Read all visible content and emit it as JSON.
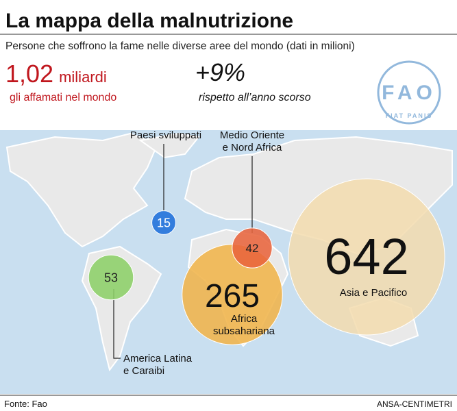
{
  "header": {
    "title": "La mappa della malnutrizione",
    "subtitle": "Persone che soffrono la fame nelle diverse aree del mondo (dati in milioni)"
  },
  "stats": [
    {
      "number": "1,02",
      "unit": "miliardi",
      "caption": "gli affamati nel mondo"
    },
    {
      "number": "+9%",
      "caption": "rispetto all’anno scorso"
    }
  ],
  "logo": {
    "letters": "FAO",
    "motto": "FIAT PANIS"
  },
  "regions": [
    {
      "label": [
        "Paesi sviluppati"
      ],
      "value": 15,
      "color": "#1e6fd9"
    },
    {
      "label": [
        "Medio Oriente",
        "e Nord Africa"
      ],
      "value": 42,
      "color": "#e8643c"
    },
    {
      "label": [
        "Africa",
        "subsahariana"
      ],
      "value": 265,
      "color": "#f0b44a"
    },
    {
      "label": [
        "Asia e Pacifico"
      ],
      "value": 642,
      "color": "#f3dcae"
    },
    {
      "label": [
        "America Latina",
        "e Caraibi"
      ],
      "value": 53,
      "color": "#8ccf68"
    }
  ],
  "footer": {
    "source": "Fonte: Fao",
    "credit": "ANSA-CENTIMETRI"
  }
}
